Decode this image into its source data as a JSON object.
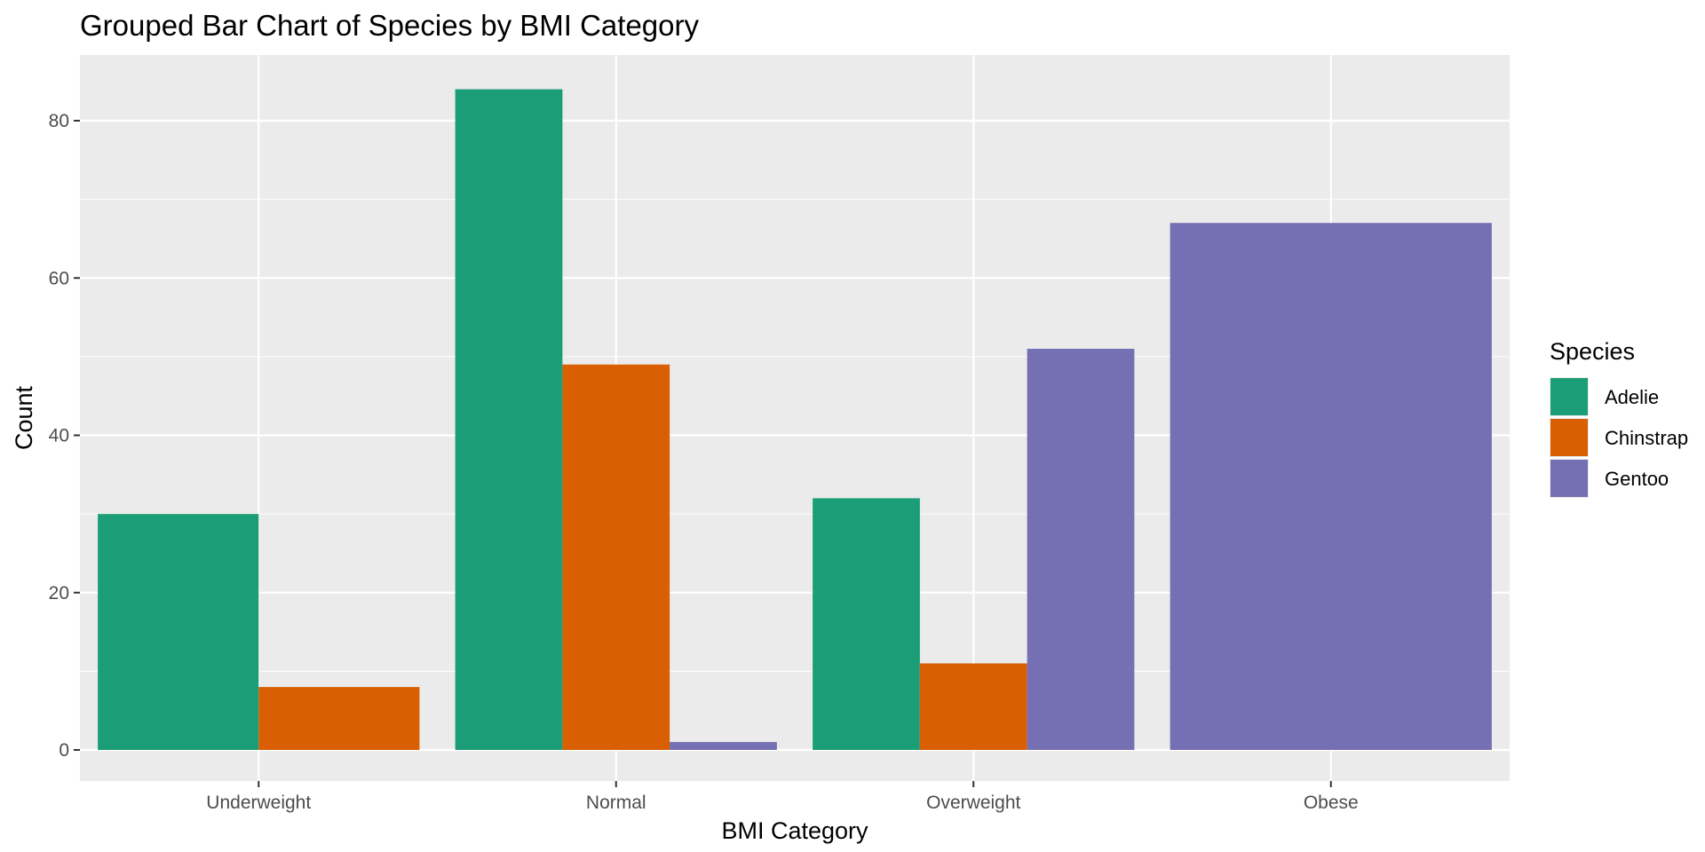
{
  "chart_data": {
    "type": "bar",
    "title": "Grouped Bar Chart of Species by BMI Category",
    "xlabel": "BMI Category",
    "ylabel": "Count",
    "categories": [
      "Underweight",
      "Normal",
      "Overweight",
      "Obese"
    ],
    "series": [
      {
        "name": "Adelie",
        "color": "#1B9E77",
        "values": [
          30,
          84,
          32,
          null
        ]
      },
      {
        "name": "Chinstrap",
        "color": "#D95F02",
        "values": [
          8,
          49,
          11,
          null
        ]
      },
      {
        "name": "Gentoo",
        "color": "#7570B3",
        "values": [
          null,
          1,
          51,
          67
        ]
      }
    ],
    "ylim": [
      0,
      88
    ],
    "yticks": [
      0,
      20,
      40,
      60,
      80
    ],
    "grid": true,
    "legend": {
      "title": "Species",
      "placement": "right"
    },
    "panel_background": "#EBEBEB",
    "gridline_color": "#FFFFFF"
  }
}
